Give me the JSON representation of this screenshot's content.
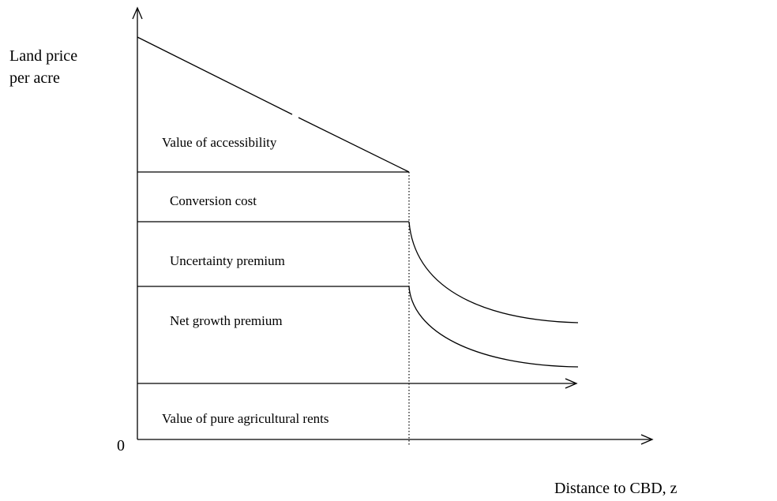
{
  "y_axis_label": {
    "line1": "Land price",
    "line2": "per acre"
  },
  "x_axis_label": "Distance to CBD, z",
  "origin_label": "0",
  "regions": [
    "Value of accessibility",
    "Conversion cost",
    "Uncertainty premium",
    "Net growth premium",
    "Value of pure agricultural rents"
  ]
}
